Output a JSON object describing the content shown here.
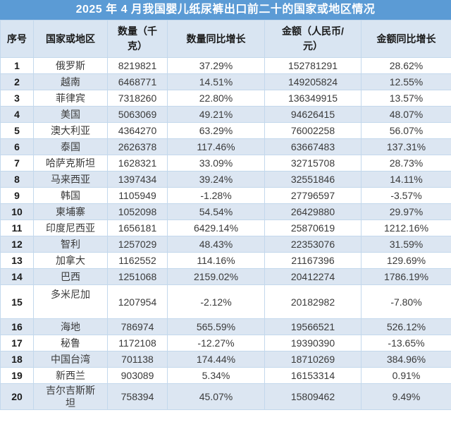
{
  "title": "2025 年 4 月我国婴儿纸尿裤出口前二十的国家或地区情况",
  "colors": {
    "title_bg": "#5b9bd5",
    "title_text": "#ffffff",
    "header_bg": "#d9e5f2",
    "band_bg": "#dce6f2",
    "border": "#c3d8ec",
    "text": "#3a3a3a"
  },
  "columns_display": [
    "序号",
    "国家或地区",
    "数量（千\n克）",
    "数量同比增长",
    "金额（人民币/\n元）",
    "金额同比增长"
  ],
  "chart_data": {
    "type": "table",
    "title": "2025 年 4 月我国婴儿纸尿裤出口前二十的国家或地区情况",
    "columns": [
      "序号",
      "国家或地区",
      "数量（千克）",
      "数量同比增长",
      "金额（人民币/元）",
      "金额同比增长"
    ],
    "rows": [
      {
        "no": "1",
        "country": "俄罗斯",
        "qty": "8219821",
        "qty_yoy": "37.29%",
        "amount": "152781291",
        "amount_yoy": "28.62%"
      },
      {
        "no": "2",
        "country": "越南",
        "qty": "6468771",
        "qty_yoy": "14.51%",
        "amount": "149205824",
        "amount_yoy": "12.55%"
      },
      {
        "no": "3",
        "country": "菲律宾",
        "qty": "7318260",
        "qty_yoy": "22.80%",
        "amount": "136349915",
        "amount_yoy": "13.57%"
      },
      {
        "no": "4",
        "country": "美国",
        "qty": "5063069",
        "qty_yoy": "49.21%",
        "amount": "94626415",
        "amount_yoy": "48.07%"
      },
      {
        "no": "5",
        "country": "澳大利亚",
        "qty": "4364270",
        "qty_yoy": "63.29%",
        "amount": "76002258",
        "amount_yoy": "56.07%"
      },
      {
        "no": "6",
        "country": "泰国",
        "qty": "2626378",
        "qty_yoy": "117.46%",
        "amount": "63667483",
        "amount_yoy": "137.31%"
      },
      {
        "no": "7",
        "country": "哈萨克斯坦",
        "qty": "1628321",
        "qty_yoy": "33.09%",
        "amount": "32715708",
        "amount_yoy": "28.73%"
      },
      {
        "no": "8",
        "country": "马来西亚",
        "qty": "1397434",
        "qty_yoy": "39.24%",
        "amount": "32551846",
        "amount_yoy": "14.11%"
      },
      {
        "no": "9",
        "country": "韩国",
        "qty": "1105949",
        "qty_yoy": "-1.28%",
        "amount": "27796597",
        "amount_yoy": "-3.57%"
      },
      {
        "no": "10",
        "country": "柬埔寨",
        "qty": "1052098",
        "qty_yoy": "54.54%",
        "amount": "26429880",
        "amount_yoy": "29.97%"
      },
      {
        "no": "11",
        "country": "印度尼西亚",
        "qty": "1656181",
        "qty_yoy": "6429.14%",
        "amount": "25870619",
        "amount_yoy": "1212.16%"
      },
      {
        "no": "12",
        "country": "智利",
        "qty": "1257029",
        "qty_yoy": "48.43%",
        "amount": "22353076",
        "amount_yoy": "31.59%"
      },
      {
        "no": "13",
        "country": "加拿大",
        "qty": "1162552",
        "qty_yoy": "114.16%",
        "amount": "21167396",
        "amount_yoy": "129.69%"
      },
      {
        "no": "14",
        "country": "巴西",
        "qty": "1251068",
        "qty_yoy": "2159.02%",
        "amount": "20412274",
        "amount_yoy": "1786.19%"
      },
      {
        "no": "15",
        "country": "多米尼加",
        "qty": "1207954",
        "qty_yoy": "-2.12%",
        "amount": "20182982",
        "amount_yoy": "-7.80%",
        "tall": true,
        "country_top": true
      },
      {
        "no": "16",
        "country": "海地",
        "qty": "786974",
        "qty_yoy": "565.59%",
        "amount": "19566521",
        "amount_yoy": "526.12%"
      },
      {
        "no": "17",
        "country": "秘鲁",
        "qty": "1172108",
        "qty_yoy": "-12.27%",
        "amount": "19390390",
        "amount_yoy": "-13.65%"
      },
      {
        "no": "18",
        "country": "中国台湾",
        "qty": "701138",
        "qty_yoy": "174.44%",
        "amount": "18710269",
        "amount_yoy": "384.96%"
      },
      {
        "no": "19",
        "country": "新西兰",
        "qty": "903089",
        "qty_yoy": "5.34%",
        "amount": "16153314",
        "amount_yoy": "0.91%"
      },
      {
        "no": "20",
        "country": "吉尔吉斯斯坦",
        "country_display": "吉尔吉斯斯\n坦",
        "qty": "758394",
        "qty_yoy": "45.07%",
        "amount": "15809462",
        "amount_yoy": "9.49%"
      }
    ]
  }
}
